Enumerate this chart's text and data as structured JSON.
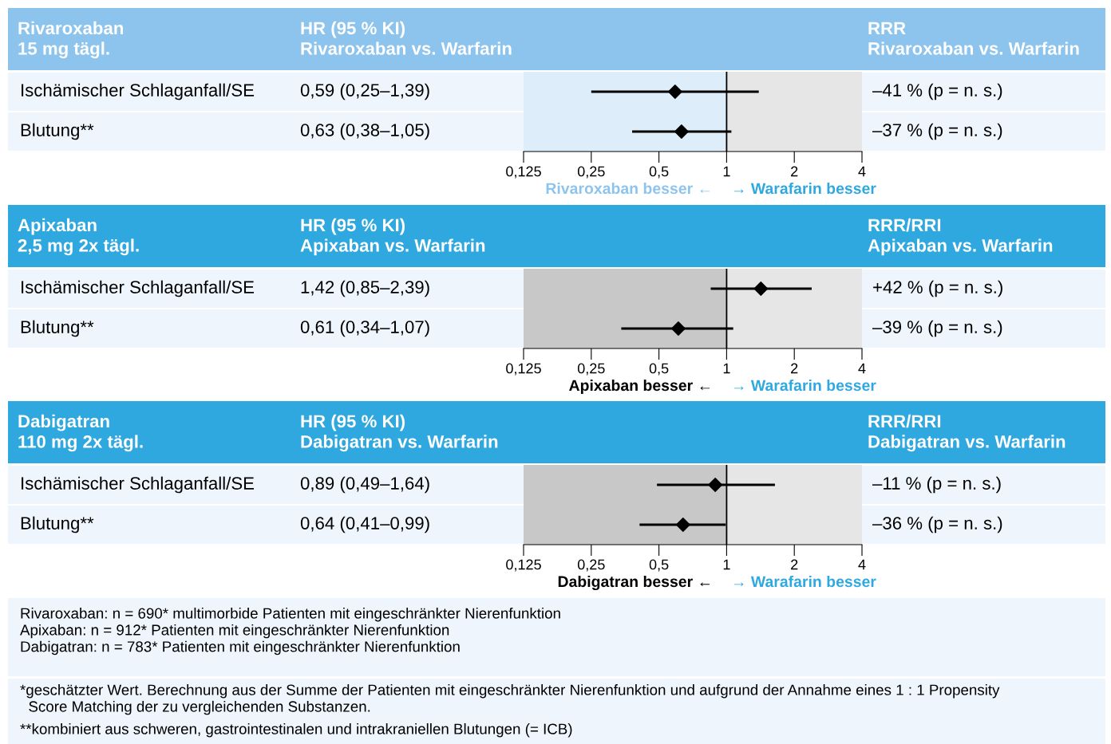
{
  "chart_data": [
    {
      "type": "scatter",
      "orientation": "horizontal",
      "log": "x",
      "categories": [
        "Ischämischer Schlaganfall/SE",
        "Blutung**"
      ],
      "values": [
        0.59,
        0.63
      ],
      "errors": [
        [
          0.25,
          1.39
        ],
        [
          0.38,
          1.05
        ]
      ],
      "value_labels": [
        "0,59 (0,25–1,39)",
        "0,63 (0,38–1,05)"
      ],
      "color": "#000000",
      "marker": "diamond",
      "xlim": [
        0.125,
        4
      ],
      "xticks": [
        {
          "value": 0.125,
          "label": "0,125"
        },
        {
          "value": 0.25,
          "label": "0,25"
        },
        {
          "value": 0.5,
          "label": "0,5"
        },
        1,
        2,
        4
      ],
      "ref_lines": [
        {
          "axis": "x",
          "value": 1,
          "color": "#000000"
        }
      ],
      "bands": [
        {
          "axis": "x",
          "from": 0.125,
          "to": 1,
          "color": "#ddedfa"
        },
        {
          "axis": "x",
          "from": 1,
          "to": 4,
          "color": "#e6e6e6"
        }
      ],
      "grid": false,
      "tick_labels": "x",
      "annotations": [
        "Rivaroxaban\n15 mg tägl.",
        "HR (95 % KI)\nRivaroxaban vs. Warfarin",
        "RRR\nRivaroxaban vs. Warfarin",
        "–41 % (p = n. s.)",
        "–37 % (p = n. s.)",
        "Rivaroxaban besser ←",
        "→ Warafarin besser"
      ]
    },
    {
      "type": "scatter",
      "orientation": "horizontal",
      "log": "x",
      "categories": [
        "Ischämischer Schlaganfall/SE",
        "Blutung**"
      ],
      "values": [
        1.42,
        0.61
      ],
      "errors": [
        [
          0.85,
          2.39
        ],
        [
          0.34,
          1.07
        ]
      ],
      "value_labels": [
        "1,42 (0,85–2,39)",
        "0,61 (0,34–1,07)"
      ],
      "color": "#000000",
      "marker": "diamond",
      "xlim": [
        0.125,
        4
      ],
      "xticks": [
        {
          "value": 0.125,
          "label": "0,125"
        },
        {
          "value": 0.25,
          "label": "0,25"
        },
        {
          "value": 0.5,
          "label": "0,5"
        },
        1,
        2,
        4
      ],
      "ref_lines": [
        {
          "axis": "x",
          "value": 1,
          "color": "#000000"
        }
      ],
      "bands": [
        {
          "axis": "x",
          "from": 0.125,
          "to": 1,
          "color": "#c8c8c8"
        },
        {
          "axis": "x",
          "from": 1,
          "to": 4,
          "color": "#e6e6e6"
        }
      ],
      "grid": false,
      "tick_labels": "x",
      "annotations": [
        "Apixaban\n2,5 mg 2x tägl.",
        "HR (95 % KI)\nApixaban vs. Warfarin",
        "RRR/RRI\nApixaban vs. Warfarin",
        "+42 % (p = n. s.)",
        "–39 % (p = n. s.)",
        "Apixaban besser ←",
        "→ Warafarin besser"
      ]
    },
    {
      "type": "scatter",
      "orientation": "horizontal",
      "log": "x",
      "categories": [
        "Ischämischer Schlaganfall/SE",
        "Blutung**"
      ],
      "values": [
        0.89,
        0.64
      ],
      "errors": [
        [
          0.49,
          1.64
        ],
        [
          0.41,
          0.99
        ]
      ],
      "value_labels": [
        "0,89 (0,49–1,64)",
        "0,64 (0,41–0,99)"
      ],
      "color": "#000000",
      "marker": "diamond",
      "xlim": [
        0.125,
        4
      ],
      "xticks": [
        {
          "value": 0.125,
          "label": "0,125"
        },
        {
          "value": 0.25,
          "label": "0,25"
        },
        {
          "value": 0.5,
          "label": "0,5"
        },
        1,
        2,
        4
      ],
      "ref_lines": [
        {
          "axis": "x",
          "value": 1,
          "color": "#000000"
        }
      ],
      "bands": [
        {
          "axis": "x",
          "from": 0.125,
          "to": 1,
          "color": "#c8c8c8"
        },
        {
          "axis": "x",
          "from": 1,
          "to": 4,
          "color": "#e6e6e6"
        }
      ],
      "grid": false,
      "tick_labels": "x",
      "annotations": [
        "Dabigatran\n110 mg 2x tägl.",
        "HR (95 % KI)\nDabigatran vs. Warfarin",
        "RRR/RRI\nDabigatran vs. Warfarin",
        "–11 % (p = n. s.)",
        "–36 % (p = n. s.)",
        "Dabigatran besser ←",
        "→ Warafarin besser"
      ]
    },
    {
      "type": "other",
      "annotations": [
        "Rivaroxaban: n = 690* multimorbide Patienten mit eingeschränkter Nierenfunktion\nApixaban: n = 912* Patienten mit eingeschränkter Nierenfunktion\nDabigatran: n = 783* Patienten mit eingeschränkter Nierenfunktion",
        "*geschätzter Wert. Berechnung aus der Summe der Patienten mit eingeschränkter Nierenfunktion und aufgrund der Annahme eines 1 : 1 Propensity\n  Score Matching der zu vergleichenden Substanzen.",
        "**kombiniert aus schweren, gastrointestinalen und intrakraniellen Blutungen (= ICB)"
      ]
    }
  ]
}
